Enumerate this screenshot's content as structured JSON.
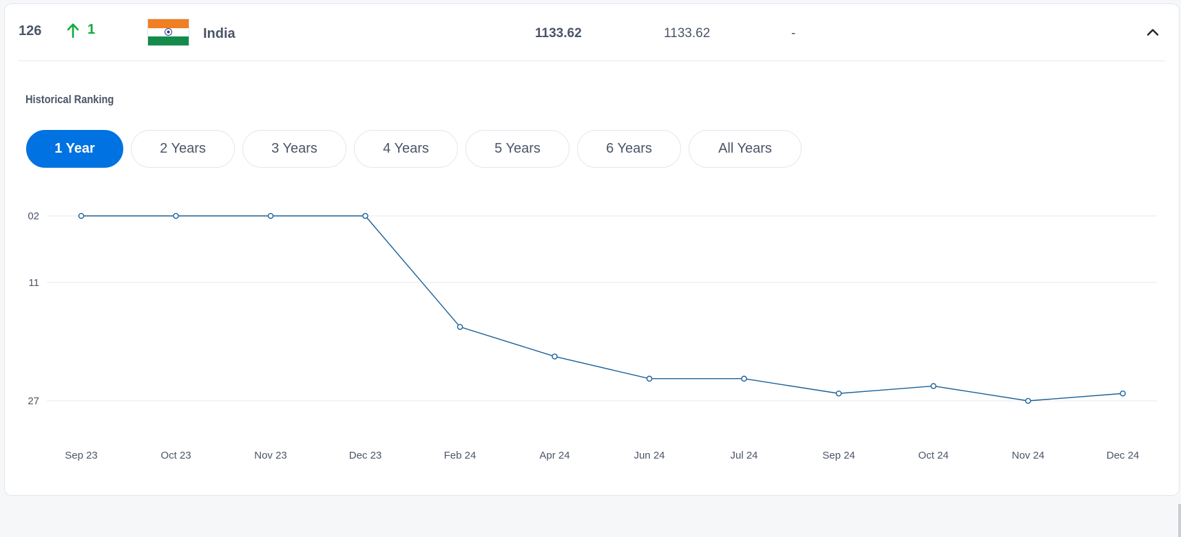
{
  "row": {
    "rank": "126",
    "change_value": "1",
    "change_direction": "up",
    "country": "India",
    "flag": "india-flag",
    "score_current": "1133.62",
    "score_previous": "1133.62",
    "score_diff": "-",
    "toggle_icon": "chevron-up-icon"
  },
  "history": {
    "title": "Historical Ranking",
    "tabs": [
      {
        "label": "1 Year",
        "active": true
      },
      {
        "label": "2 Years",
        "active": false
      },
      {
        "label": "3 Years",
        "active": false
      },
      {
        "label": "4 Years",
        "active": false
      },
      {
        "label": "5 Years",
        "active": false
      },
      {
        "label": "6 Years",
        "active": false
      },
      {
        "label": "All Years",
        "active": false
      }
    ]
  },
  "colors": {
    "accent": "#0172e1",
    "positive": "#0aad3a",
    "line": "#1a5f96",
    "text": "#4a5568",
    "grid": "#e6e8ef"
  },
  "chart_data": {
    "type": "line",
    "title": "Historical Ranking",
    "xlabel": "",
    "ylabel": "",
    "categories": [
      "Sep 23",
      "Oct 23",
      "Nov 23",
      "Dec 23",
      "Feb 24",
      "Apr 24",
      "Jun 24",
      "Jul 24",
      "Sep 24",
      "Oct 24",
      "Nov 24",
      "Dec 24"
    ],
    "series": [
      {
        "name": "Ranking",
        "values": [
          2,
          2,
          2,
          2,
          17,
          21,
          24,
          24,
          26,
          25,
          27,
          26
        ]
      }
    ],
    "y_ticks": [
      "02",
      "11",
      "27"
    ],
    "y_tick_values": [
      2,
      11,
      27
    ],
    "ylim": [
      2,
      27
    ],
    "y_inverted": true,
    "grid": true,
    "legend": "none"
  }
}
